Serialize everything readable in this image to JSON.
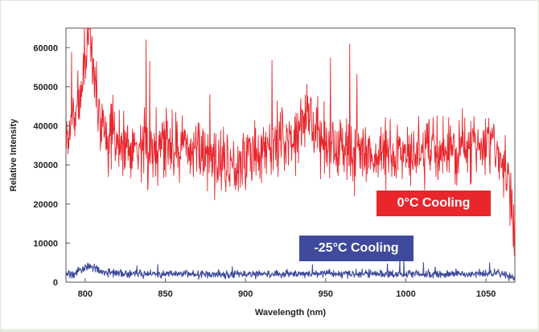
{
  "chart_data": {
    "type": "line",
    "title": "",
    "xlabel": "Wavelength (nm)",
    "ylabel": "Relative Intensity",
    "xlim": [
      788,
      1068
    ],
    "ylim": [
      0,
      65000
    ],
    "xticks": [
      800,
      850,
      900,
      950,
      1000,
      1050
    ],
    "yticks": [
      0,
      10000,
      20000,
      30000,
      40000,
      50000,
      60000
    ],
    "xtick_labels": [
      "800",
      "850",
      "900",
      "950",
      "1000",
      "1050"
    ],
    "ytick_labels": [
      "0",
      "10000",
      "20000",
      "30000",
      "40000",
      "50000",
      "60000"
    ],
    "grid": false,
    "series": [
      {
        "name": "0°C Cooling",
        "color": "#e8262c",
        "x": [
          788,
          792,
          796,
          800,
          803,
          806,
          810,
          815,
          820,
          830,
          840,
          850,
          860,
          870,
          880,
          890,
          900,
          910,
          920,
          930,
          938,
          942,
          950,
          960,
          970,
          980,
          990,
          1000,
          1010,
          1020,
          1030,
          1040,
          1050,
          1060,
          1064,
          1067
        ],
        "values": [
          36000,
          41000,
          45000,
          58000,
          62000,
          52000,
          40000,
          37000,
          36000,
          35000,
          34000,
          36000,
          35000,
          34000,
          32000,
          30000,
          32000,
          33000,
          36000,
          38000,
          43000,
          40000,
          36000,
          34000,
          33000,
          32000,
          33000,
          34000,
          33000,
          34000,
          34000,
          34000,
          35000,
          33000,
          28000,
          12000
        ],
        "noise": 6000
      },
      {
        "name": "-25°C Cooling",
        "color": "#3f4a9c",
        "x": [
          788,
          795,
          800,
          803,
          806,
          810,
          830,
          850,
          880,
          900,
          930,
          960,
          1000,
          1030,
          1060,
          1067
        ],
        "values": [
          1800,
          2500,
          3500,
          4500,
          3500,
          2500,
          2200,
          2200,
          2000,
          2000,
          2200,
          2200,
          2100,
          2100,
          2200,
          1000
        ],
        "noise": 700
      }
    ],
    "legend": [
      "0°C Cooling",
      "-25°C Cooling"
    ],
    "legend_colors": [
      "#e8262c",
      "#3f4a9c"
    ]
  }
}
